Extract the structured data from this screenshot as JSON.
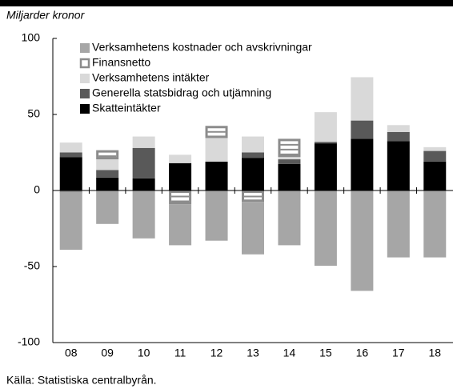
{
  "chart_data": {
    "type": "stacked_bar",
    "y_label": "Miljarder kronor",
    "source": "Källa: Statistiska centralbyrån.",
    "categories": [
      "08",
      "09",
      "10",
      "11",
      "12",
      "13",
      "14",
      "15",
      "16",
      "17",
      "18"
    ],
    "series": [
      {
        "name": "Verksamhetens kostnader och avskrivningar",
        "color": "#a6a6a6",
        "values": [
          -38,
          -22,
          -31.5,
          -27,
          -33,
          -34.5,
          -36,
          -49.5,
          -66,
          -44,
          -44
        ]
      },
      {
        "name": "Finansnetto",
        "color": "#8c8c8c",
        "values": [
          -1,
          6,
          0,
          -9,
          8,
          -7.5,
          12,
          0,
          0,
          0,
          0
        ]
      },
      {
        "name": "Verksamhetens intäkter",
        "color": "#d9d9d9",
        "values": [
          6.5,
          7,
          7.5,
          5.5,
          15.5,
          10.5,
          1.5,
          19.5,
          28.5,
          4.5,
          2.5
        ]
      },
      {
        "name": "Generella statsbidrag och utjämning",
        "color": "#595959",
        "values": [
          3,
          5,
          20,
          0,
          0,
          3.5,
          3,
          1,
          12,
          6,
          7
        ]
      },
      {
        "name": "Skatteintäkter",
        "color": "#000000",
        "values": [
          22,
          8.5,
          8,
          18,
          19,
          21.5,
          17.5,
          31,
          34,
          32.5,
          19
        ]
      }
    ],
    "ylim": [
      -100,
      100
    ],
    "yticks": [
      -100,
      -50,
      0,
      50,
      100
    ]
  }
}
